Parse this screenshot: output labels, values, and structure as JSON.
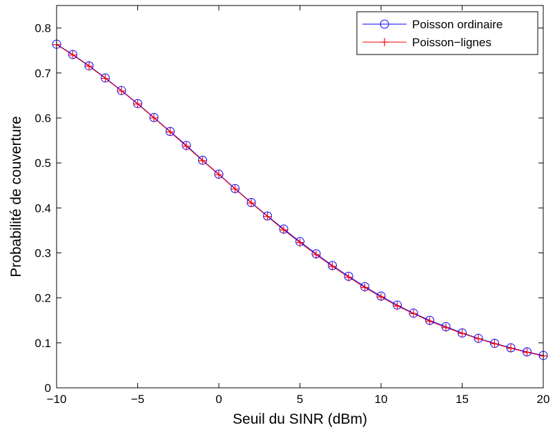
{
  "chart_data": {
    "type": "line",
    "xlabel": "Seuil du SINR (dBm)",
    "ylabel": "Probabilité de couverture",
    "xlim": [
      -10,
      20
    ],
    "ylim": [
      0,
      0.85
    ],
    "x_ticks": [
      -10,
      -5,
      0,
      5,
      10,
      15,
      20
    ],
    "x_tick_labels": [
      "−10",
      "−5",
      "0",
      "5",
      "10",
      "15",
      "20"
    ],
    "y_ticks": [
      0,
      0.1,
      0.2,
      0.3,
      0.4,
      0.5,
      0.6,
      0.7,
      0.8
    ],
    "y_tick_labels": [
      "0",
      "0.1",
      "0.2",
      "0.3",
      "0.4",
      "0.5",
      "0.6",
      "0.7",
      "0.8"
    ],
    "grid": false,
    "legend_position": "top-right",
    "x": [
      -10,
      -9,
      -8,
      -7,
      -6,
      -5,
      -4,
      -3,
      -2,
      -1,
      0,
      1,
      2,
      3,
      4,
      5,
      6,
      7,
      8,
      9,
      10,
      11,
      12,
      13,
      14,
      15,
      16,
      17,
      18,
      19,
      20
    ],
    "series": [
      {
        "name": "Poisson ordinaire",
        "color": "#0000ff",
        "marker": "circle",
        "values": [
          0.764,
          0.741,
          0.716,
          0.689,
          0.661,
          0.632,
          0.601,
          0.57,
          0.539,
          0.506,
          0.475,
          0.443,
          0.412,
          0.382,
          0.353,
          0.325,
          0.298,
          0.272,
          0.248,
          0.225,
          0.204,
          0.184,
          0.166,
          0.15,
          0.136,
          0.122,
          0.11,
          0.099,
          0.089,
          0.08,
          0.072
        ]
      },
      {
        "name": "Poisson−lignes",
        "color": "#ff0000",
        "marker": "plus",
        "values": [
          0.763,
          0.74,
          0.715,
          0.688,
          0.66,
          0.631,
          0.6,
          0.569,
          0.537,
          0.505,
          0.474,
          0.442,
          0.411,
          0.381,
          0.351,
          0.323,
          0.296,
          0.27,
          0.246,
          0.223,
          0.202,
          0.182,
          0.165,
          0.148,
          0.134,
          0.121,
          0.109,
          0.098,
          0.088,
          0.079,
          0.071
        ]
      }
    ]
  }
}
